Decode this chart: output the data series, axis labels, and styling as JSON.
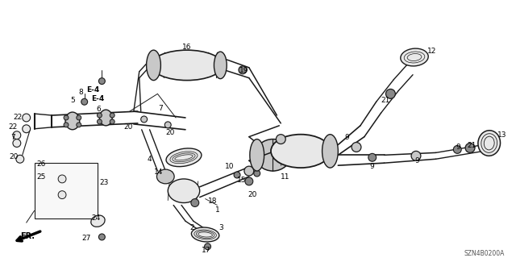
{
  "title": "",
  "background_color": "#ffffff",
  "diagram_code": "SZN4B0200A",
  "fig_width": 6.4,
  "fig_height": 3.2,
  "dpi": 100,
  "text_color": "#000000",
  "line_color": "#1a1a1a",
  "gray_fill": "#c8c8c8",
  "dark_fill": "#888888",
  "light_fill": "#e8e8e8"
}
